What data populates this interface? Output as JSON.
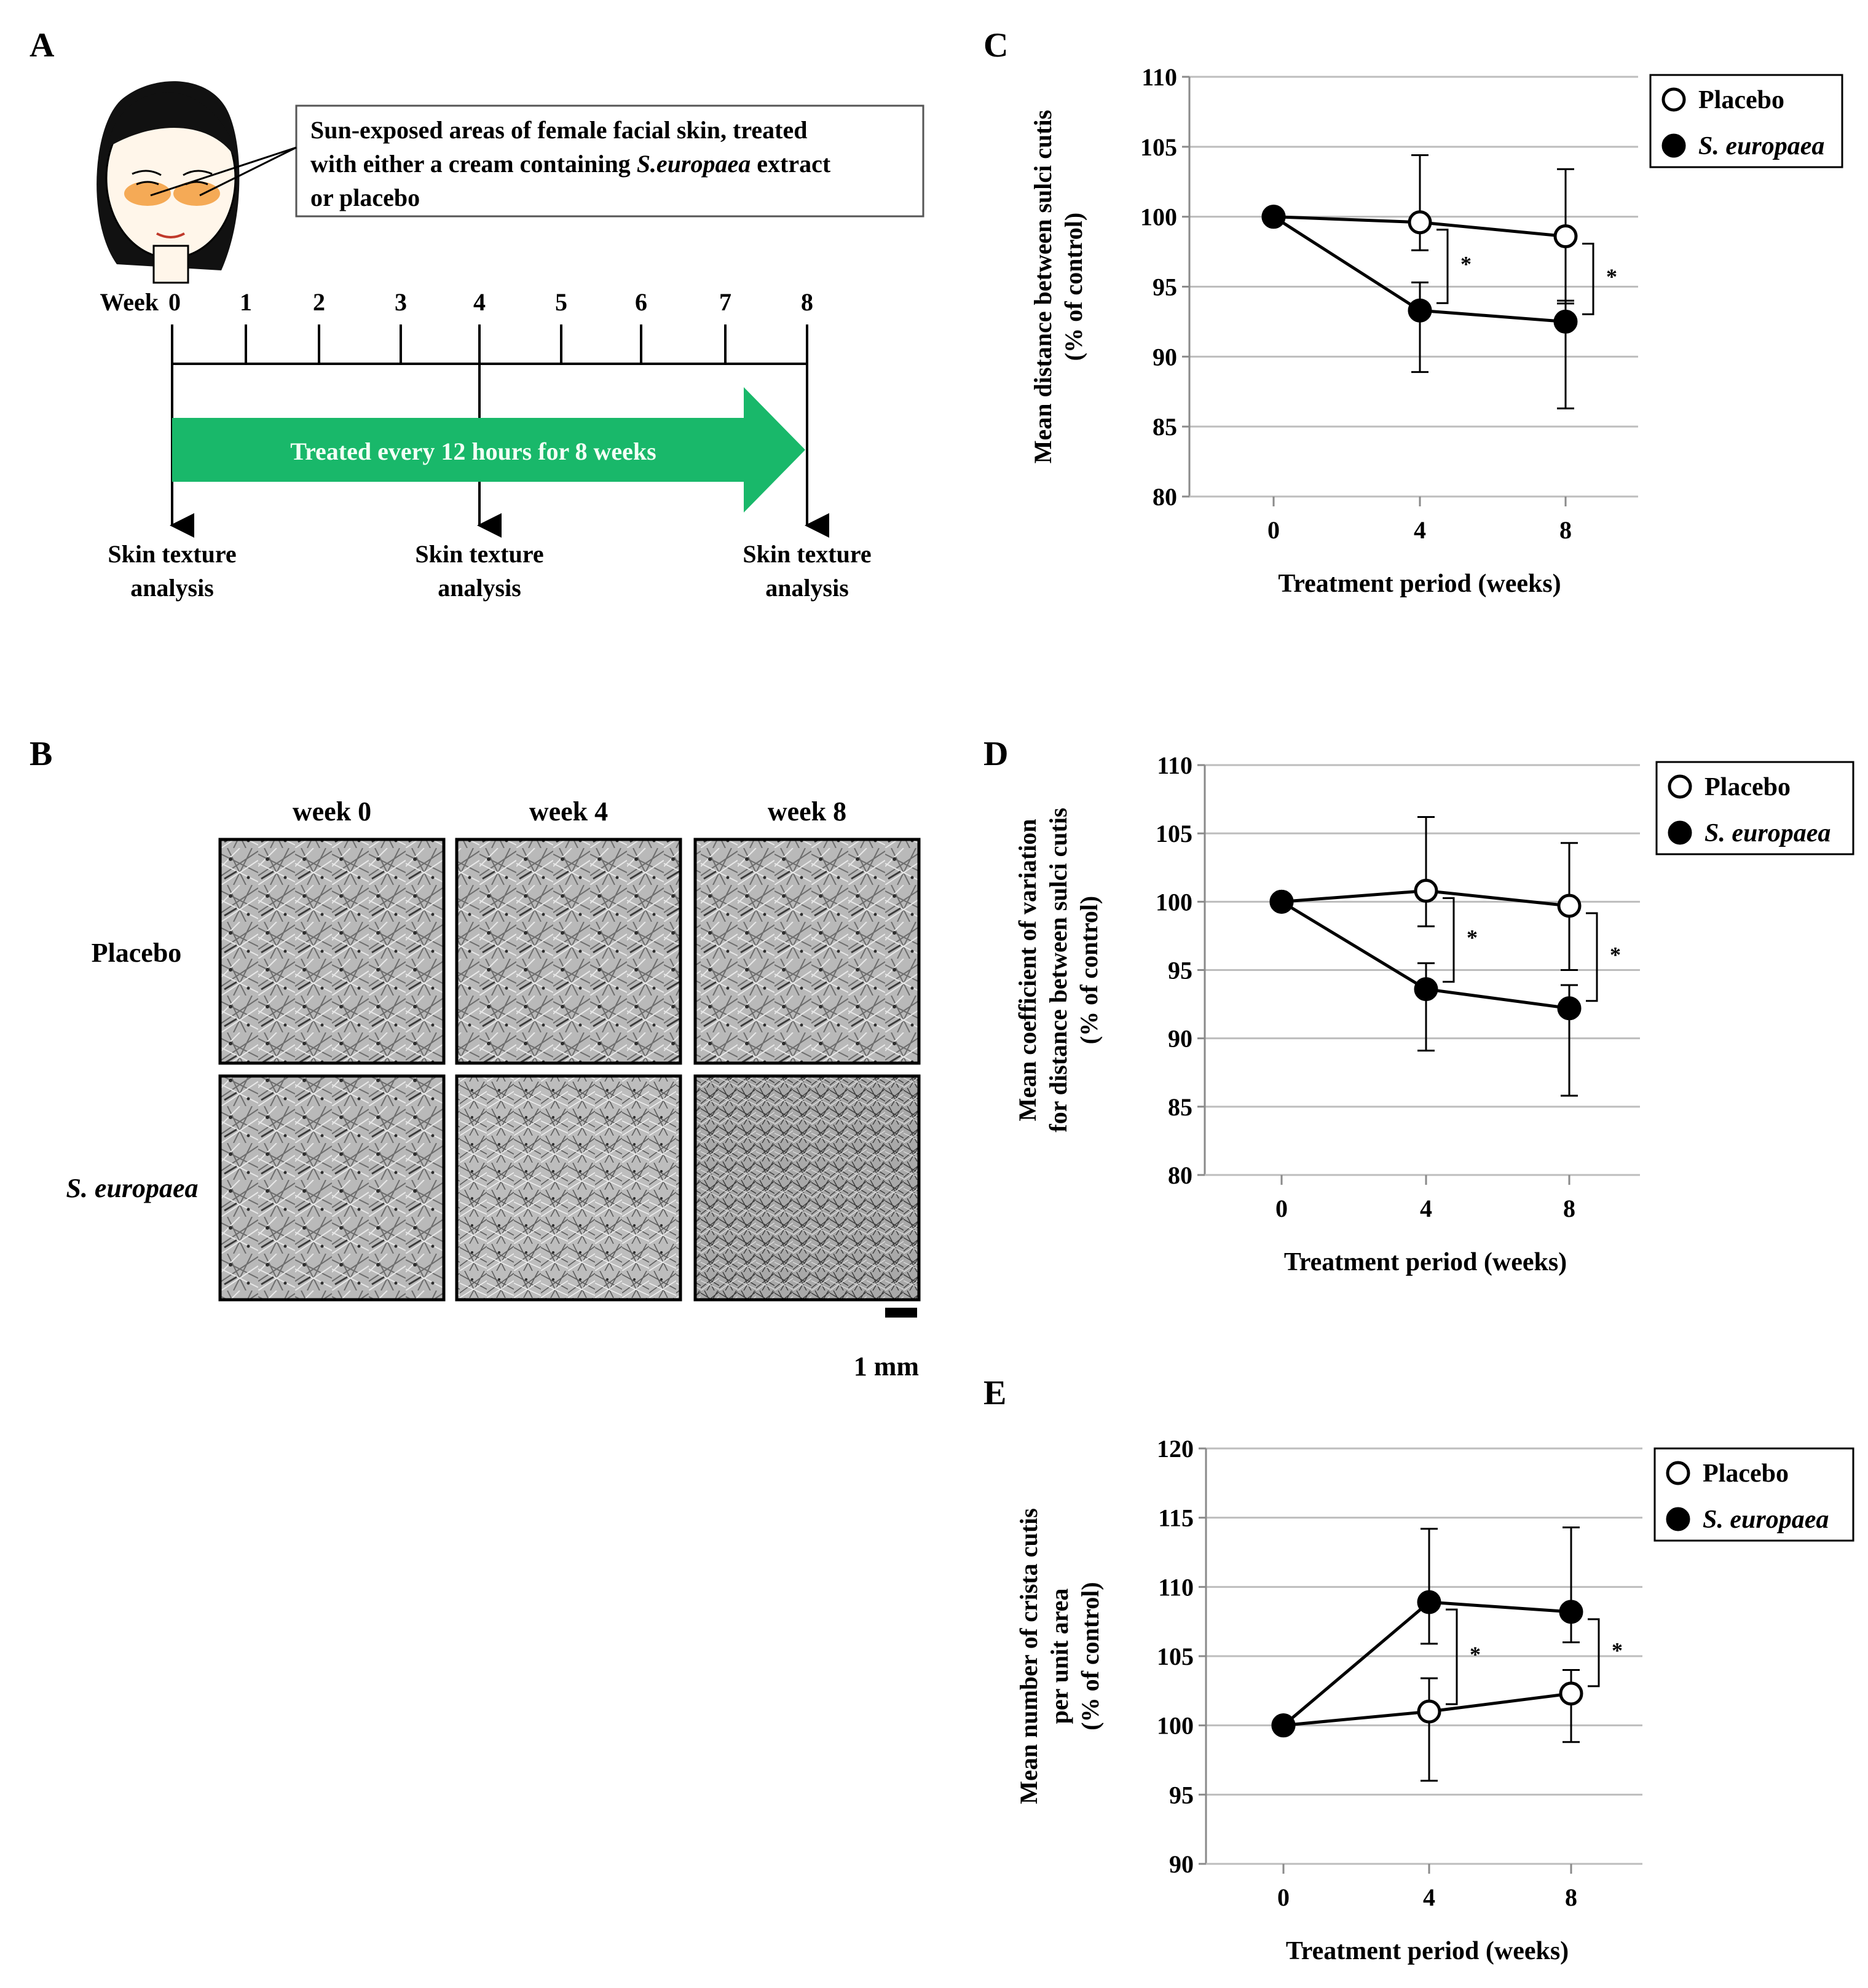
{
  "panels": {
    "A": {
      "letter": "A",
      "callout": {
        "line1": "Sun-exposed areas of female facial skin, treated",
        "line2_prefix": "with either a cream containing ",
        "line2_italic": "S.europaea",
        "line2_suffix": " extract",
        "line3": "or placebo"
      },
      "week_label": "Week",
      "week_ticks": [
        "0",
        "1",
        "2",
        "3",
        "4",
        "5",
        "6",
        "7",
        "8"
      ],
      "arrow_text": "Treated every 12 hours for 8 weeks",
      "analysis_label_line1": "Skin texture",
      "analysis_label_line2": "analysis",
      "colors": {
        "arrow": "#19b86a",
        "glasses": "#f39c3c",
        "arrow_text": "#f2fff5"
      }
    },
    "B": {
      "letter": "B",
      "columns": [
        "week 0",
        "week 4",
        "week 8"
      ],
      "rows": [
        {
          "label": "Placebo",
          "italic": false
        },
        {
          "label": "S. europaea",
          "italic": true
        }
      ],
      "scale_bar_label": "1 mm"
    },
    "C": {
      "letter": "C"
    },
    "D": {
      "letter": "D"
    },
    "E": {
      "letter": "E"
    }
  },
  "chart_data": [
    {
      "panel": "C",
      "type": "line",
      "xlabel": "Treatment period (weeks)",
      "ylabel_lines": [
        "Mean distance between sulci cutis",
        "(% of control)"
      ],
      "x": [
        0,
        4,
        8
      ],
      "xticks": [
        "0",
        "4",
        "8"
      ],
      "ylim": [
        80,
        110
      ],
      "yticks": [
        80,
        85,
        90,
        95,
        100,
        105,
        110
      ],
      "grid": true,
      "legend_position": "top-right",
      "series": [
        {
          "name": "Placebo",
          "marker": "open-circle",
          "values": [
            100,
            99.6,
            98.6
          ],
          "err_upper": [
            null,
            104.4,
            103.4
          ],
          "err_lower": [
            null,
            97.6,
            93.8
          ]
        },
        {
          "name": "S. europaea",
          "marker": "filled-circle",
          "italic": true,
          "values": [
            100,
            93.3,
            92.5
          ],
          "err_upper": [
            null,
            95.3,
            94.0
          ],
          "err_lower": [
            null,
            88.9,
            86.3
          ]
        }
      ],
      "significance": [
        {
          "x": 4,
          "label": "*"
        },
        {
          "x": 8,
          "label": "*"
        }
      ]
    },
    {
      "panel": "D",
      "type": "line",
      "xlabel": "Treatment period (weeks)",
      "ylabel_lines": [
        "Mean coefficient of variation",
        "for distance between sulci cutis",
        "(% of control)"
      ],
      "x": [
        0,
        4,
        8
      ],
      "xticks": [
        "0",
        "4",
        "8"
      ],
      "ylim": [
        80,
        110
      ],
      "yticks": [
        80,
        85,
        90,
        95,
        100,
        105,
        110
      ],
      "grid": true,
      "legend_position": "top-right",
      "series": [
        {
          "name": "Placebo",
          "marker": "open-circle",
          "values": [
            100,
            100.8,
            99.7
          ],
          "err_upper": [
            null,
            106.2,
            104.3
          ],
          "err_lower": [
            null,
            98.2,
            95.0
          ]
        },
        {
          "name": "S. europaea",
          "marker": "filled-circle",
          "italic": true,
          "values": [
            100,
            93.6,
            92.2
          ],
          "err_upper": [
            null,
            95.5,
            93.9
          ],
          "err_lower": [
            null,
            89.1,
            85.8
          ]
        }
      ],
      "significance": [
        {
          "x": 4,
          "label": "*"
        },
        {
          "x": 8,
          "label": "*"
        }
      ]
    },
    {
      "panel": "E",
      "type": "line",
      "xlabel": "Treatment period (weeks)",
      "ylabel_lines": [
        "Mean number of crista cutis",
        "per unit area",
        "(% of control)"
      ],
      "x": [
        0,
        4,
        8
      ],
      "xticks": [
        "0",
        "4",
        "8"
      ],
      "ylim": [
        90,
        120
      ],
      "yticks": [
        90,
        95,
        100,
        105,
        110,
        115,
        120
      ],
      "grid": true,
      "legend_position": "top-right",
      "series": [
        {
          "name": "Placebo",
          "marker": "open-circle",
          "values": [
            100,
            101,
            102.3
          ],
          "err_upper": [
            null,
            103.4,
            104.0
          ],
          "err_lower": [
            null,
            96.0,
            98.8
          ]
        },
        {
          "name": "S. europaea",
          "marker": "filled-circle",
          "italic": true,
          "values": [
            100,
            108.9,
            108.2
          ],
          "err_upper": [
            null,
            114.2,
            114.3
          ],
          "err_lower": [
            null,
            105.9,
            106.0
          ]
        }
      ],
      "significance": [
        {
          "x": 4,
          "label": "*"
        },
        {
          "x": 8,
          "label": "*"
        }
      ]
    }
  ]
}
